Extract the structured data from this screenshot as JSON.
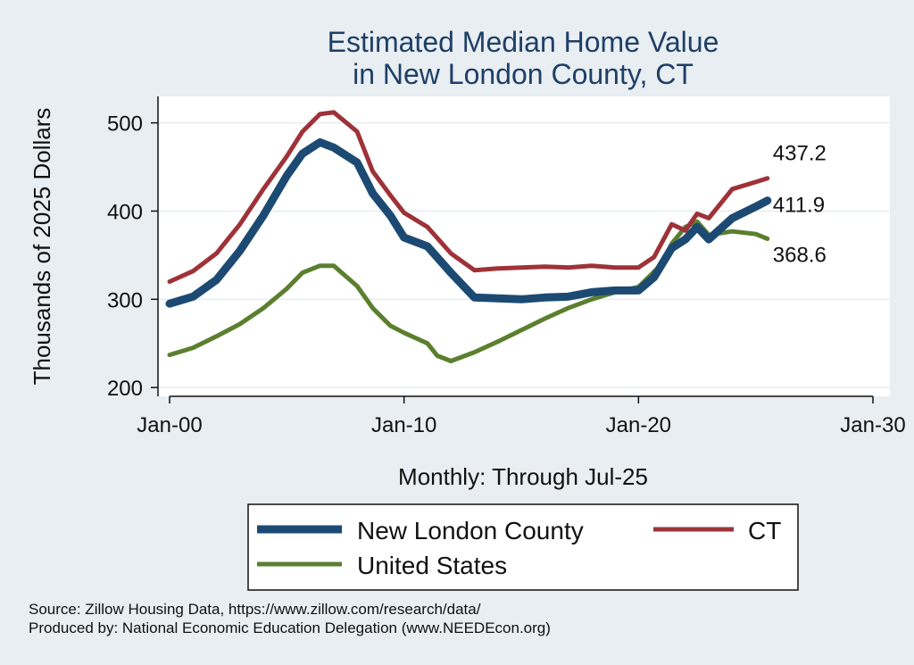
{
  "chart_data": {
    "type": "line",
    "title": [
      "Estimated Median Home Value",
      "in New London County, CT"
    ],
    "xlabel": "Monthly: Through Jul-25",
    "ylabel": "Thousands of 2025 Dollars",
    "xticks": [
      "Jan-00",
      "Jan-10",
      "Jan-20",
      "Jan-30"
    ],
    "xlim": [
      "2000-01",
      "2030-01"
    ],
    "yticks": [
      200,
      300,
      400,
      500
    ],
    "ylim": [
      190,
      530
    ],
    "grid": true,
    "legend_position": "bottom",
    "series": [
      {
        "name": "New London County",
        "color": "#1c4a73",
        "line_weight": "thick",
        "end_label": "411.9",
        "points": [
          [
            "2000-01",
            295
          ],
          [
            "2001-01",
            303
          ],
          [
            "2002-01",
            322
          ],
          [
            "2003-01",
            355
          ],
          [
            "2004-01",
            395
          ],
          [
            "2005-01",
            440
          ],
          [
            "2005-09",
            465
          ],
          [
            "2006-06",
            478
          ],
          [
            "2007-01",
            472
          ],
          [
            "2008-01",
            455
          ],
          [
            "2008-09",
            420
          ],
          [
            "2009-06",
            395
          ],
          [
            "2010-01",
            370
          ],
          [
            "2011-01",
            360
          ],
          [
            "2012-01",
            330
          ],
          [
            "2013-01",
            302
          ],
          [
            "2014-01",
            301
          ],
          [
            "2015-01",
            300
          ],
          [
            "2016-01",
            302
          ],
          [
            "2017-01",
            303
          ],
          [
            "2018-01",
            308
          ],
          [
            "2019-01",
            310
          ],
          [
            "2020-01",
            310
          ],
          [
            "2020-09",
            325
          ],
          [
            "2021-06",
            358
          ],
          [
            "2022-01",
            368
          ],
          [
            "2022-07",
            382
          ],
          [
            "2023-01",
            368
          ],
          [
            "2024-01",
            392
          ],
          [
            "2025-01",
            405
          ],
          [
            "2025-07",
            411.9
          ]
        ]
      },
      {
        "name": "CT",
        "color": "#9e3238",
        "line_weight": "medium",
        "end_label": "437.2",
        "points": [
          [
            "2000-01",
            320
          ],
          [
            "2001-01",
            332
          ],
          [
            "2002-01",
            352
          ],
          [
            "2003-01",
            385
          ],
          [
            "2004-01",
            425
          ],
          [
            "2005-01",
            462
          ],
          [
            "2005-09",
            490
          ],
          [
            "2006-06",
            510
          ],
          [
            "2007-01",
            512
          ],
          [
            "2008-01",
            490
          ],
          [
            "2008-09",
            445
          ],
          [
            "2009-06",
            418
          ],
          [
            "2010-01",
            398
          ],
          [
            "2011-01",
            382
          ],
          [
            "2012-01",
            352
          ],
          [
            "2013-01",
            333
          ],
          [
            "2014-01",
            335
          ],
          [
            "2015-01",
            336
          ],
          [
            "2016-01",
            337
          ],
          [
            "2017-01",
            336
          ],
          [
            "2018-01",
            338
          ],
          [
            "2019-01",
            336
          ],
          [
            "2020-01",
            336
          ],
          [
            "2020-09",
            348
          ],
          [
            "2021-06",
            385
          ],
          [
            "2022-01",
            378
          ],
          [
            "2022-07",
            397
          ],
          [
            "2023-01",
            392
          ],
          [
            "2024-01",
            425
          ],
          [
            "2025-01",
            433
          ],
          [
            "2025-07",
            437.2
          ]
        ]
      },
      {
        "name": "United States",
        "color": "#5b7f2f",
        "line_weight": "medium",
        "end_label": "368.6",
        "points": [
          [
            "2000-01",
            237
          ],
          [
            "2001-01",
            245
          ],
          [
            "2002-01",
            258
          ],
          [
            "2003-01",
            272
          ],
          [
            "2004-01",
            290
          ],
          [
            "2005-01",
            312
          ],
          [
            "2005-09",
            330
          ],
          [
            "2006-06",
            338
          ],
          [
            "2007-01",
            338
          ],
          [
            "2008-01",
            315
          ],
          [
            "2008-09",
            290
          ],
          [
            "2009-06",
            270
          ],
          [
            "2010-01",
            262
          ],
          [
            "2011-01",
            250
          ],
          [
            "2011-06",
            236
          ],
          [
            "2012-01",
            230
          ],
          [
            "2013-01",
            240
          ],
          [
            "2014-01",
            252
          ],
          [
            "2015-01",
            265
          ],
          [
            "2016-01",
            278
          ],
          [
            "2017-01",
            290
          ],
          [
            "2018-01",
            300
          ],
          [
            "2019-01",
            308
          ],
          [
            "2020-01",
            314
          ],
          [
            "2021-01",
            340
          ],
          [
            "2021-06",
            363
          ],
          [
            "2022-01",
            382
          ],
          [
            "2022-07",
            388
          ],
          [
            "2023-01",
            373
          ],
          [
            "2024-01",
            377
          ],
          [
            "2025-01",
            374
          ],
          [
            "2025-07",
            368.6
          ]
        ]
      }
    ],
    "source_lines": [
      "Source: Zillow Housing Data, https://www.zillow.com/research/data/",
      "Produced by: National Economic Education Delegation (www.NEEDEcon.org)"
    ]
  }
}
